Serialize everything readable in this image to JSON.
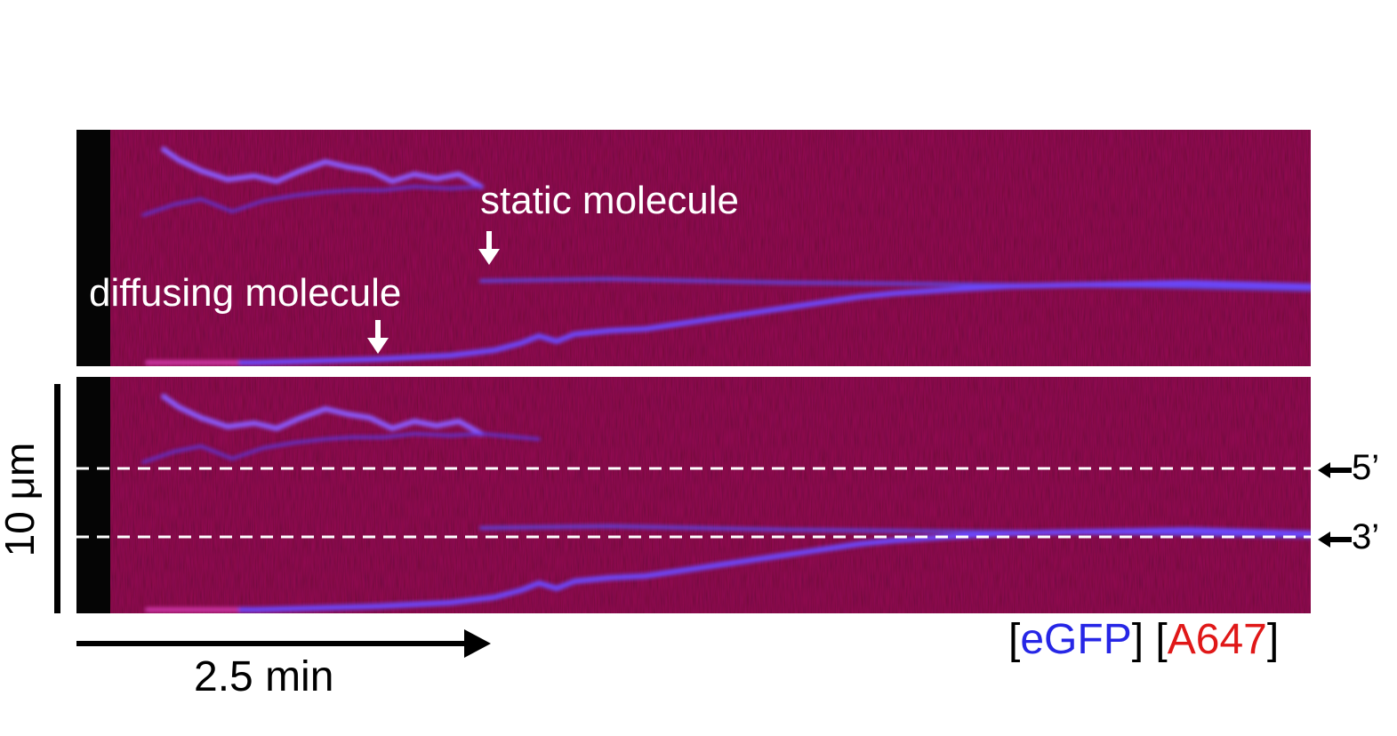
{
  "figure": {
    "top_panel": {
      "label_static": "static molecule",
      "label_diffusing": "diffusing molecule"
    },
    "bottom_panel": {
      "marker_5prime": "5’",
      "marker_3prime": "3’"
    },
    "scale_bar_vertical": "10 μm",
    "scale_bar_horizontal": "2.5 min",
    "legend": {
      "open_bracket_1": "[",
      "channel_1": "eGFP",
      "close_bracket_1": "]",
      "open_bracket_2": "[",
      "channel_2": "A647",
      "close_bracket_2": "]"
    },
    "colors": {
      "background_kymograph": "#6a0f1c",
      "egfp": "#2626e6",
      "a647": "#e01818",
      "trace": "#7b4cff",
      "annotation": "#ffffff"
    }
  }
}
